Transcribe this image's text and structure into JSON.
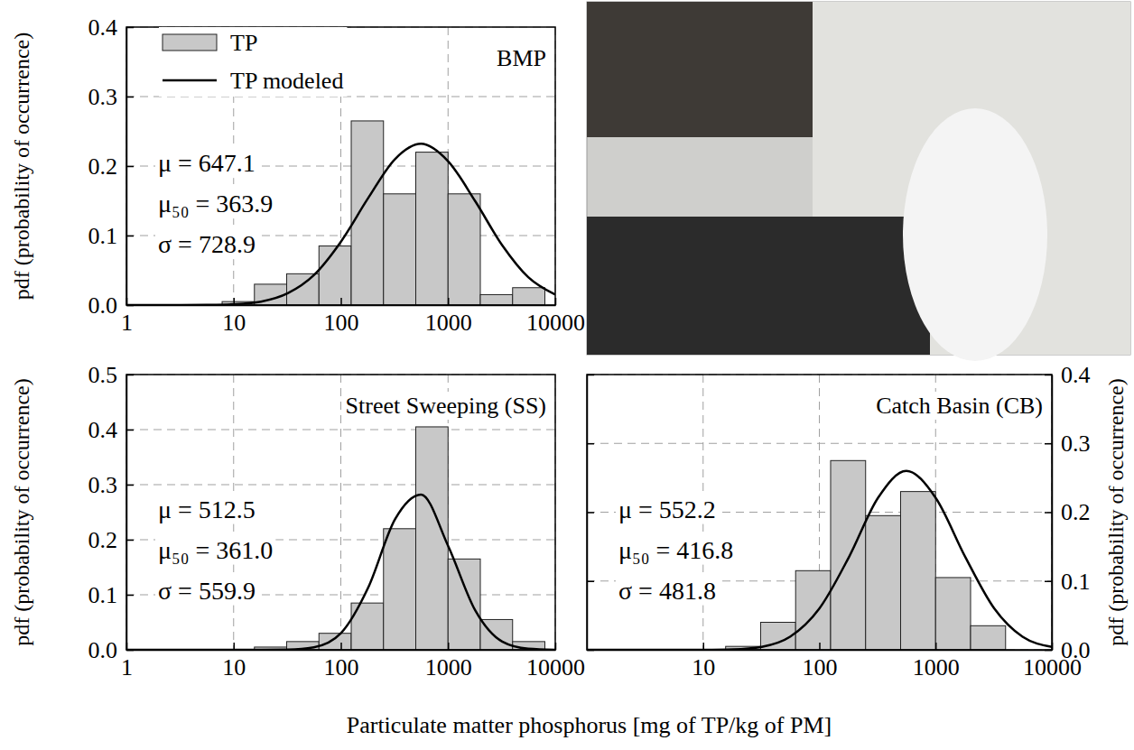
{
  "chart_data": [
    {
      "type": "histogram",
      "title": "BMP",
      "log": "x",
      "grid": true,
      "legend": "upper left",
      "xlim": [
        1,
        10000
      ],
      "xticks": [
        1,
        10,
        100,
        1000,
        10000
      ],
      "ylim": [
        0,
        0.4
      ],
      "yticks": [
        {
          "value": 0,
          "label": "0.0"
        },
        0.1,
        0.2,
        0.3,
        0.4
      ],
      "ylabel": "pdf (probability of occurrence)",
      "annotations": [
        "μ = 647.1",
        "μ₅₀ = 363.9",
        "σ = 728.9"
      ],
      "series": [
        {
          "name": "TP",
          "type": "bar",
          "color": "#c8c8c8",
          "bins": [
            7.8125,
            15.625,
            31.25,
            62.5,
            125,
            250,
            500,
            1000,
            2000,
            4000,
            8000
          ],
          "values": [
            0.005,
            0.03,
            0.045,
            0.085,
            0.265,
            0.16,
            0.22,
            0.16,
            0.015,
            0.025
          ]
        },
        {
          "name": "TP modeled",
          "type": "line",
          "color": "#000000",
          "x": [
            1,
            1.8,
            3.2,
            5.6,
            10,
            18,
            32,
            56,
            100,
            180,
            320,
            560,
            1000,
            1800,
            3200,
            5600,
            10000
          ],
          "values": [
            0,
            0,
            0,
            0.0003,
            0.0013,
            0.005,
            0.017,
            0.043,
            0.091,
            0.154,
            0.21,
            0.232,
            0.207,
            0.149,
            0.086,
            0.04,
            0.015
          ]
        }
      ]
    },
    {
      "type": "histogram",
      "title": "Street Sweeping (SS)",
      "log": "x",
      "grid": true,
      "xlim": [
        1,
        10000
      ],
      "xticks": [
        1,
        10,
        100,
        1000,
        10000
      ],
      "ylim": [
        0,
        0.5
      ],
      "yticks": [
        {
          "value": 0,
          "label": "0.0"
        },
        0.1,
        0.2,
        0.3,
        0.4,
        0.5
      ],
      "xlabel": "Particulate matter phosphorus [mg of TP/kg of PM]",
      "ylabel": "pdf (probability of occurrence)",
      "annotations": [
        "μ = 512.5",
        "μ₅₀ = 361.0",
        "σ = 559.9"
      ],
      "series": [
        {
          "type": "bar",
          "color": "#c8c8c8",
          "bins": [
            15.625,
            31.25,
            62.5,
            125,
            250,
            500,
            1000,
            2000,
            4000,
            8000
          ],
          "values": [
            0.005,
            0.015,
            0.03,
            0.085,
            0.22,
            0.405,
            0.165,
            0.055,
            0.015
          ]
        },
        {
          "type": "line",
          "color": "#000000",
          "x": [
            1,
            1.8,
            3.2,
            5.6,
            10,
            18,
            32,
            56,
            100,
            180,
            320,
            560,
            1000,
            1800,
            3200,
            5600,
            10000
          ],
          "values": [
            0,
            0,
            0,
            0,
            0,
            0,
            0.0004,
            0.0045,
            0.03,
            0.113,
            0.237,
            0.282,
            0.189,
            0.071,
            0.015,
            0.002,
            0.0001
          ]
        }
      ]
    },
    {
      "type": "histogram",
      "title": "Catch Basin (CB)",
      "log": "x",
      "grid": true,
      "xlim": [
        1,
        10000
      ],
      "xticks": [
        10,
        100,
        1000,
        10000
      ],
      "ylim": [
        0,
        0.4
      ],
      "yticks": [
        {
          "value": 0,
          "label": "0.0"
        },
        0.1,
        0.2,
        0.3,
        0.4
      ],
      "ylabel": "pdf (probability of occurrence)",
      "annotations": [
        "μ = 552.2",
        "μ₅₀ = 416.8",
        "σ = 481.8"
      ],
      "series": [
        {
          "type": "bar",
          "color": "#c8c8c8",
          "bins": [
            15.625,
            31.25,
            62.5,
            125,
            250,
            500,
            1000,
            2000,
            4000
          ],
          "values": [
            0.005,
            0.04,
            0.115,
            0.275,
            0.195,
            0.23,
            0.105,
            0.035
          ]
        },
        {
          "type": "line",
          "color": "#000000",
          "x": [
            1,
            1.8,
            3.2,
            5.6,
            10,
            18,
            32,
            56,
            100,
            180,
            320,
            560,
            1000,
            1800,
            3200,
            5600,
            10000
          ],
          "values": [
            0,
            0,
            0,
            0,
            0.0001,
            0.0007,
            0.0044,
            0.019,
            0.06,
            0.135,
            0.221,
            0.26,
            0.221,
            0.135,
            0.06,
            0.019,
            0.0044
          ]
        }
      ]
    }
  ]
}
